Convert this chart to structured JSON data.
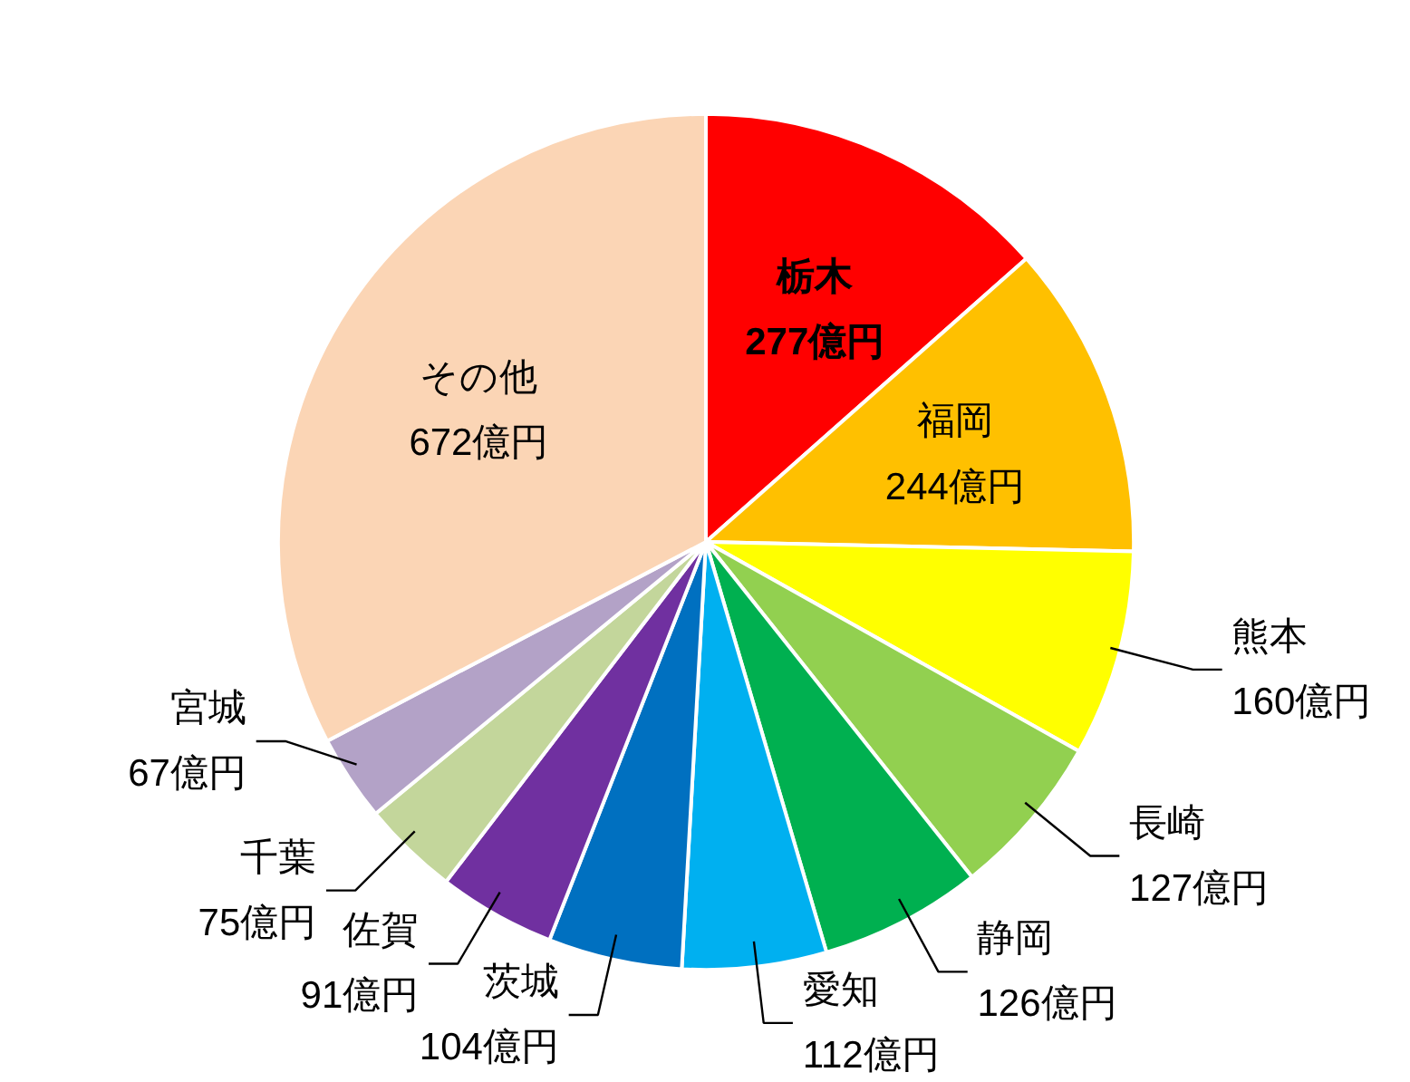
{
  "chart_data": {
    "type": "pie",
    "categories": [
      "栃木",
      "福岡",
      "熊本",
      "長崎",
      "静岡",
      "愛知",
      "茨城",
      "佐賀",
      "千葉",
      "宮城",
      "その他"
    ],
    "values": [
      277,
      244,
      160,
      127,
      126,
      112,
      104,
      91,
      75,
      67,
      672
    ],
    "value_labels": [
      "277億円",
      "244億円",
      "160億円",
      "127億円",
      "126億円",
      "112億円",
      "104億円",
      "91億円",
      "75億円",
      "67億円",
      "672億円"
    ],
    "colors": [
      "#ff0000",
      "#ffc000",
      "#ffff00",
      "#92d050",
      "#00b050",
      "#00b0f0",
      "#0070c0",
      "#7030a0",
      "#c3d69b",
      "#b3a2c7",
      "#fbd5b5"
    ],
    "legend": false
  }
}
